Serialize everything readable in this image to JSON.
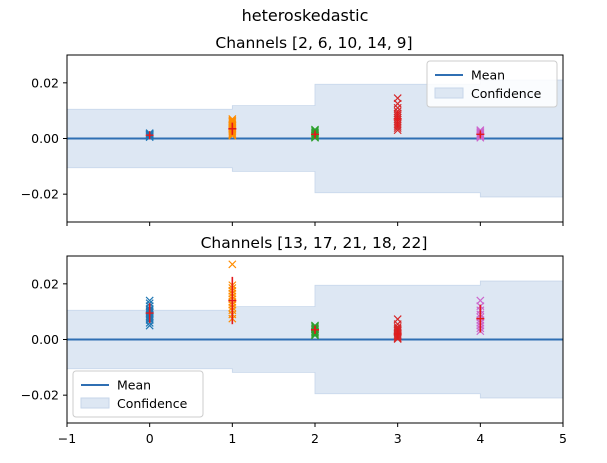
{
  "figure_title": "heteroskedastic",
  "chart_data": [
    {
      "type": "scatter",
      "title": "Channels [2, 6, 10, 14, 9]",
      "xlim": [
        -1,
        5
      ],
      "ylim": [
        -0.03,
        0.03
      ],
      "xticks": [],
      "yticks": [
        "0.02",
        "0.00",
        "−0.02"
      ],
      "ytick_values": [
        0.02,
        0.0,
        -0.02
      ],
      "mean_value": 0.0,
      "confidence": [
        {
          "x_from": -1,
          "x_to": 1,
          "lower": -0.0105,
          "upper": 0.0105
        },
        {
          "x_from": 1,
          "x_to": 2,
          "lower": -0.0118,
          "upper": 0.0118
        },
        {
          "x_from": 2,
          "x_to": 4,
          "lower": -0.0195,
          "upper": 0.0195
        },
        {
          "x_from": 4,
          "x_to": 5,
          "lower": -0.021,
          "upper": 0.021
        }
      ],
      "legend": {
        "placement": "upper right",
        "mean_label": "Mean",
        "confidence_label": "Confidence"
      },
      "groups": [
        {
          "x": 0,
          "color": "#1f77b4",
          "mean": 0.0012,
          "err": 0.0006,
          "values": [
            0.0005,
            0.0008,
            0.001,
            0.0012,
            0.0013,
            0.0015,
            0.0017,
            0.0019
          ]
        },
        {
          "x": 1,
          "color": "#ff8c00",
          "mean": 0.0035,
          "err": 0.0022,
          "values": [
            0.001,
            0.0015,
            0.002,
            0.0025,
            0.003,
            0.0035,
            0.004,
            0.0045,
            0.005,
            0.0055,
            0.006,
            0.0065,
            0.007
          ]
        },
        {
          "x": 2,
          "color": "#2ca02c",
          "mean": 0.0015,
          "err": 0.0008,
          "values": [
            0.0003,
            0.0006,
            0.001,
            0.0014,
            0.0018,
            0.0022,
            0.0027,
            0.0032
          ]
        },
        {
          "x": 3,
          "color": "#d62728",
          "mean": 0.007,
          "err": 0.003,
          "values": [
            0.003,
            0.0038,
            0.0045,
            0.0052,
            0.006,
            0.0068,
            0.0075,
            0.0083,
            0.009,
            0.0098,
            0.011,
            0.0125,
            0.0145
          ]
        },
        {
          "x": 4,
          "color": "#cc66cc",
          "mean": 0.0015,
          "err": 0.0008,
          "values": [
            0.0003,
            0.0007,
            0.001,
            0.0013,
            0.0017,
            0.0021,
            0.0026,
            0.003
          ]
        }
      ]
    },
    {
      "type": "scatter",
      "title": "Channels [13, 17, 21, 18, 22]",
      "xlim": [
        -1,
        5
      ],
      "ylim": [
        -0.03,
        0.03
      ],
      "xticks": [
        "−1",
        "0",
        "1",
        "2",
        "3",
        "4",
        "5"
      ],
      "xtick_values": [
        -1,
        0,
        1,
        2,
        3,
        4,
        5
      ],
      "yticks": [
        "0.02",
        "0.00",
        "−0.02"
      ],
      "ytick_values": [
        0.02,
        0.0,
        -0.02
      ],
      "mean_value": 0.0,
      "confidence": [
        {
          "x_from": -1,
          "x_to": 1,
          "lower": -0.0105,
          "upper": 0.0105
        },
        {
          "x_from": 1,
          "x_to": 2,
          "lower": -0.0118,
          "upper": 0.0118
        },
        {
          "x_from": 2,
          "x_to": 4,
          "lower": -0.0195,
          "upper": 0.0195
        },
        {
          "x_from": 4,
          "x_to": 5,
          "lower": -0.021,
          "upper": 0.021
        }
      ],
      "legend": {
        "placement": "lower left",
        "mean_label": "Mean",
        "confidence_label": "Confidence"
      },
      "groups": [
        {
          "x": 0,
          "color": "#1f77b4",
          "mean": 0.0095,
          "err": 0.0035,
          "values": [
            0.005,
            0.006,
            0.007,
            0.0075,
            0.008,
            0.0085,
            0.009,
            0.0095,
            0.01,
            0.0105,
            0.011,
            0.012,
            0.013,
            0.014
          ]
        },
        {
          "x": 1,
          "color": "#ff8c00",
          "mean": 0.014,
          "err": 0.0085,
          "values": [
            0.0075,
            0.009,
            0.0105,
            0.0115,
            0.0125,
            0.0135,
            0.0145,
            0.0155,
            0.0165,
            0.0175,
            0.0185,
            0.0195,
            0.027
          ]
        },
        {
          "x": 2,
          "color": "#2ca02c",
          "mean": 0.0035,
          "err": 0.0015,
          "values": [
            0.0015,
            0.002,
            0.0025,
            0.003,
            0.0035,
            0.004,
            0.0045,
            0.005
          ]
        },
        {
          "x": 3,
          "color": "#d62728",
          "mean": 0.002,
          "err": 0.002,
          "values": [
            0.0002,
            0.0005,
            0.001,
            0.0015,
            0.002,
            0.0025,
            0.003,
            0.0035,
            0.004,
            0.0045,
            0.0055,
            0.0073
          ]
        },
        {
          "x": 4,
          "color": "#cc66cc",
          "mean": 0.0075,
          "err": 0.005,
          "values": [
            0.003,
            0.004,
            0.005,
            0.006,
            0.007,
            0.008,
            0.009,
            0.0105,
            0.012,
            0.014
          ]
        }
      ]
    }
  ]
}
